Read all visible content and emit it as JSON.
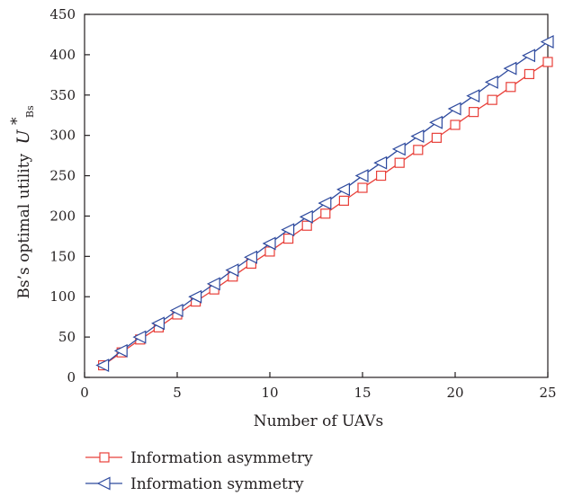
{
  "chart_data": {
    "type": "line",
    "title": "",
    "xlabel": "Number of UAVs",
    "ylabel": {
      "text": "Bs’s optimal utility",
      "symbol": "U",
      "superscript": "*",
      "subscript": "Bs"
    },
    "xlim": [
      0,
      25
    ],
    "ylim": [
      0,
      450
    ],
    "xticks": [
      0,
      5,
      10,
      15,
      20,
      25
    ],
    "yticks": [
      0,
      50,
      100,
      150,
      200,
      250,
      300,
      350,
      400,
      450
    ],
    "grid": false,
    "legend_position": "bottom",
    "x": [
      1,
      2,
      3,
      4,
      5,
      6,
      7,
      8,
      9,
      10,
      11,
      12,
      13,
      14,
      15,
      16,
      17,
      18,
      19,
      20,
      21,
      22,
      23,
      24,
      25
    ],
    "series": [
      {
        "name": "Information asymmetry",
        "color": "#e8403a",
        "marker": "square",
        "values": [
          15,
          31,
          47,
          62,
          78,
          94,
          109,
          125,
          141,
          156,
          172,
          188,
          203,
          219,
          235,
          250,
          266,
          282,
          297,
          313,
          329,
          344,
          360,
          376,
          391
        ]
      },
      {
        "name": "Information symmetry",
        "color": "#2e4a9e",
        "marker": "triangle-left",
        "values": [
          15,
          33,
          50,
          67,
          83,
          100,
          116,
          133,
          149,
          166,
          183,
          199,
          216,
          233,
          250,
          266,
          283,
          299,
          316,
          333,
          349,
          366,
          383,
          399,
          416
        ]
      }
    ]
  }
}
